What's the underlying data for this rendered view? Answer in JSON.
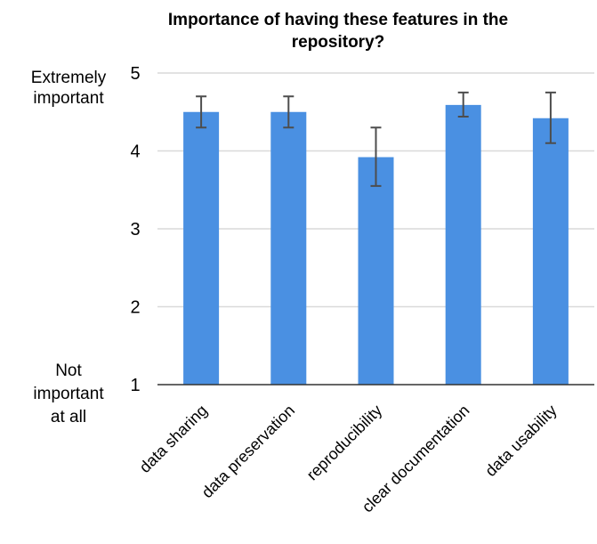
{
  "chart_data": {
    "type": "bar",
    "title": "Importance of having these features in the repository?",
    "title_lines": [
      "Importance of having these features in the",
      "repository?"
    ],
    "categories": [
      "data sharing",
      "data preservation",
      "reproducibility",
      "clear documentation",
      "data usability"
    ],
    "values": [
      4.5,
      4.5,
      3.92,
      4.59,
      4.42
    ],
    "error_low": [
      4.3,
      4.3,
      3.55,
      4.44,
      4.1
    ],
    "error_high": [
      4.7,
      4.7,
      4.3,
      4.75,
      4.75
    ],
    "ylim": [
      1,
      5
    ],
    "yticks": [
      1,
      2,
      3,
      4,
      5
    ],
    "y_anchor_top": [
      "Extremely",
      "important"
    ],
    "y_anchor_bottom": [
      "Not",
      "important",
      "at all"
    ],
    "xlabel": "",
    "ylabel": "",
    "grid": true,
    "colors": {
      "bar": "#4a90e2",
      "error_bar": "#4d4d4d",
      "grid": "#d9d9d9",
      "axis": "#333333"
    }
  }
}
